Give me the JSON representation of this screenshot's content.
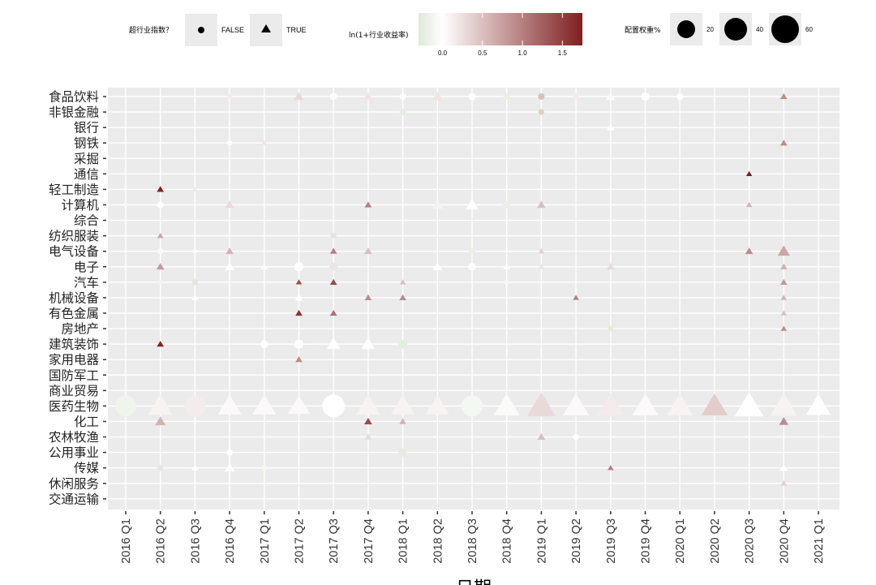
{
  "legend": {
    "shape_title": "超行业指数？",
    "shape_false": "FALSE",
    "shape_true": "TRUE",
    "color_title": "ln(1+行业收益率)",
    "color_ticks": [
      "0.0",
      "0.5",
      "1.0",
      "1.5"
    ],
    "color_low": "#dfe9d8",
    "color_mid": "#ffffff",
    "color_high": "#7f1f1f",
    "size_title": "配置权重%",
    "size_ticks": [
      "20",
      "40",
      "60"
    ]
  },
  "chart_data": {
    "type": "scatter",
    "xlabel": "日期",
    "ylabel": "",
    "x_categories": [
      "2016 Q1",
      "2016 Q2",
      "2016 Q3",
      "2016 Q4",
      "2017 Q1",
      "2017 Q2",
      "2017 Q3",
      "2017 Q4",
      "2018 Q1",
      "2018 Q2",
      "2018 Q3",
      "2018 Q4",
      "2019 Q1",
      "2019 Q2",
      "2019 Q3",
      "2019 Q4",
      "2020 Q1",
      "2020 Q2",
      "2020 Q3",
      "2020 Q4",
      "2021 Q1"
    ],
    "y_categories": [
      "食品饮料",
      "非银金融",
      "银行",
      "钢铁",
      "采掘",
      "通信",
      "轻工制造",
      "计算机",
      "综合",
      "纺织服装",
      "电气设备",
      "电子",
      "汽车",
      "机械设备",
      "有色金属",
      "房地产",
      "建筑装饰",
      "家用电器",
      "国防军工",
      "商业贸易",
      "医药生物",
      "化工",
      "农林牧渔",
      "公用事业",
      "传媒",
      "休闲服务",
      "交通运输"
    ],
    "color_range": [
      -0.3,
      1.75
    ],
    "grid": true,
    "background": "#ebebeb",
    "points": [
      {
        "x": "2016 Q1",
        "y": "医药生物",
        "above_index": false,
        "weight": 52,
        "ln_return": -0.15
      },
      {
        "x": "2016 Q1",
        "y": "计算机",
        "above_index": false,
        "weight": 2,
        "ln_return": 0.05
      },
      {
        "x": "2016 Q2",
        "y": "医药生物",
        "above_index": true,
        "weight": 48,
        "ln_return": 0.1
      },
      {
        "x": "2016 Q2",
        "y": "轻工制造",
        "above_index": true,
        "weight": 4,
        "ln_return": 1.7
      },
      {
        "x": "2016 Q2",
        "y": "建筑装饰",
        "above_index": true,
        "weight": 4,
        "ln_return": 1.7
      },
      {
        "x": "2016 Q2",
        "y": "化工",
        "above_index": true,
        "weight": 9,
        "ln_return": 0.6
      },
      {
        "x": "2016 Q2",
        "y": "电子",
        "above_index": true,
        "weight": 5,
        "ln_return": 0.8
      },
      {
        "x": "2016 Q2",
        "y": "纺织服装",
        "above_index": true,
        "weight": 3,
        "ln_return": 0.7
      },
      {
        "x": "2016 Q2",
        "y": "传媒",
        "above_index": false,
        "weight": 4,
        "ln_return": -0.3
      },
      {
        "x": "2016 Q2",
        "y": "计算机",
        "above_index": false,
        "weight": 5,
        "ln_return": 0.0
      },
      {
        "x": "2016 Q2",
        "y": "电气设备",
        "above_index": false,
        "weight": 4,
        "ln_return": 0.05
      },
      {
        "x": "2016 Q2",
        "y": "汽车",
        "above_index": false,
        "weight": 3,
        "ln_return": 0.1
      },
      {
        "x": "2016 Q3",
        "y": "医药生物",
        "above_index": false,
        "weight": 52,
        "ln_return": 0.15
      },
      {
        "x": "2016 Q3",
        "y": "汽车",
        "above_index": false,
        "weight": 4,
        "ln_return": -0.3
      },
      {
        "x": "2016 Q3",
        "y": "机械设备",
        "above_index": true,
        "weight": 4,
        "ln_return": 0.0
      },
      {
        "x": "2016 Q3",
        "y": "传媒",
        "above_index": true,
        "weight": 4,
        "ln_return": 0.0
      },
      {
        "x": "2016 Q3",
        "y": "电气设备",
        "above_index": false,
        "weight": 3,
        "ln_return": 0.05
      },
      {
        "x": "2016 Q3",
        "y": "轻工制造",
        "above_index": true,
        "weight": 2,
        "ln_return": 0.2
      },
      {
        "x": "2016 Q4",
        "y": "医药生物",
        "above_index": true,
        "weight": 45,
        "ln_return": 0.05
      },
      {
        "x": "2016 Q4",
        "y": "电气设备",
        "above_index": true,
        "weight": 5,
        "ln_return": 0.6
      },
      {
        "x": "2016 Q4",
        "y": "计算机",
        "above_index": true,
        "weight": 6,
        "ln_return": 0.3
      },
      {
        "x": "2016 Q4",
        "y": "电子",
        "above_index": true,
        "weight": 7,
        "ln_return": 0.0
      },
      {
        "x": "2016 Q4",
        "y": "传媒",
        "above_index": true,
        "weight": 9,
        "ln_return": 0.0
      },
      {
        "x": "2016 Q4",
        "y": "钢铁",
        "above_index": false,
        "weight": 3,
        "ln_return": 0.0
      },
      {
        "x": "2016 Q4",
        "y": "食品饮料",
        "above_index": false,
        "weight": 3,
        "ln_return": 0.15
      },
      {
        "x": "2016 Q4",
        "y": "公用事业",
        "above_index": false,
        "weight": 5,
        "ln_return": 0.0
      },
      {
        "x": "2017 Q1",
        "y": "医药生物",
        "above_index": true,
        "weight": 45,
        "ln_return": 0.05
      },
      {
        "x": "2017 Q1",
        "y": "建筑装饰",
        "above_index": false,
        "weight": 7,
        "ln_return": 0.0
      },
      {
        "x": "2017 Q1",
        "y": "传媒",
        "above_index": false,
        "weight": 4,
        "ln_return": -0.1
      },
      {
        "x": "2017 Q1",
        "y": "电子",
        "above_index": true,
        "weight": 5,
        "ln_return": 0.05
      },
      {
        "x": "2017 Q1",
        "y": "钢铁",
        "above_index": false,
        "weight": 2,
        "ln_return": 0.2
      },
      {
        "x": "2017 Q2",
        "y": "医药生物",
        "above_index": true,
        "weight": 40,
        "ln_return": 0.05
      },
      {
        "x": "2017 Q2",
        "y": "食品饮料",
        "above_index": true,
        "weight": 7,
        "ln_return": 0.3
      },
      {
        "x": "2017 Q2",
        "y": "汽车",
        "above_index": true,
        "weight": 3,
        "ln_return": 1.4
      },
      {
        "x": "2017 Q2",
        "y": "有色金属",
        "above_index": true,
        "weight": 4,
        "ln_return": 1.6
      },
      {
        "x": "2017 Q2",
        "y": "家用电器",
        "above_index": true,
        "weight": 4,
        "ln_return": 0.9
      },
      {
        "x": "2017 Q2",
        "y": "电子",
        "above_index": false,
        "weight": 10,
        "ln_return": 0.0
      },
      {
        "x": "2017 Q2",
        "y": "建筑装饰",
        "above_index": false,
        "weight": 10,
        "ln_return": 0.0
      },
      {
        "x": "2017 Q2",
        "y": "机械设备",
        "above_index": true,
        "weight": 5,
        "ln_return": 0.0
      },
      {
        "x": "2017 Q3",
        "y": "医药生物",
        "above_index": false,
        "weight": 60,
        "ln_return": 0.0
      },
      {
        "x": "2017 Q3",
        "y": "汽车",
        "above_index": true,
        "weight": 4,
        "ln_return": 1.4
      },
      {
        "x": "2017 Q3",
        "y": "有色金属",
        "above_index": true,
        "weight": 4,
        "ln_return": 1.1
      },
      {
        "x": "2017 Q3",
        "y": "电气设备",
        "above_index": true,
        "weight": 4,
        "ln_return": 1.0
      },
      {
        "x": "2017 Q3",
        "y": "纺织服装",
        "above_index": false,
        "weight": 4,
        "ln_return": -0.3
      },
      {
        "x": "2017 Q3",
        "y": "建筑装饰",
        "above_index": true,
        "weight": 15,
        "ln_return": 0.0
      },
      {
        "x": "2017 Q3",
        "y": "电子",
        "above_index": false,
        "weight": 8,
        "ln_return": 0.2
      },
      {
        "x": "2017 Q3",
        "y": "食品饮料",
        "above_index": false,
        "weight": 6,
        "ln_return": 0.0
      },
      {
        "x": "2017 Q4",
        "y": "医药生物",
        "above_index": true,
        "weight": 48,
        "ln_return": 0.1
      },
      {
        "x": "2017 Q4",
        "y": "建筑装饰",
        "above_index": true,
        "weight": 15,
        "ln_return": 0.0
      },
      {
        "x": "2017 Q4",
        "y": "化工",
        "above_index": true,
        "weight": 5,
        "ln_return": 1.4
      },
      {
        "x": "2017 Q4",
        "y": "计算机",
        "above_index": true,
        "weight": 4,
        "ln_return": 1.0
      },
      {
        "x": "2017 Q4",
        "y": "机械设备",
        "above_index": true,
        "weight": 4,
        "ln_return": 0.9
      },
      {
        "x": "2017 Q4",
        "y": "电气设备",
        "above_index": true,
        "weight": 5,
        "ln_return": 0.5
      },
      {
        "x": "2017 Q4",
        "y": "食品饮料",
        "above_index": true,
        "weight": 7,
        "ln_return": 0.2
      },
      {
        "x": "2017 Q4",
        "y": "农林牧渔",
        "above_index": true,
        "weight": 4,
        "ln_return": 0.3
      },
      {
        "x": "2018 Q1",
        "y": "医药生物",
        "above_index": true,
        "weight": 45,
        "ln_return": 0.1
      },
      {
        "x": "2018 Q1",
        "y": "建筑装饰",
        "above_index": false,
        "weight": 9,
        "ln_return": -0.25
      },
      {
        "x": "2018 Q1",
        "y": "公用事业",
        "above_index": false,
        "weight": 8,
        "ln_return": -0.25
      },
      {
        "x": "2018 Q1",
        "y": "非银金融",
        "above_index": false,
        "weight": 5,
        "ln_return": -0.25
      },
      {
        "x": "2018 Q1",
        "y": "机械设备",
        "above_index": true,
        "weight": 4,
        "ln_return": 0.9
      },
      {
        "x": "2018 Q1",
        "y": "化工",
        "above_index": true,
        "weight": 4,
        "ln_return": 0.6
      },
      {
        "x": "2018 Q1",
        "y": "汽车",
        "above_index": true,
        "weight": 3,
        "ln_return": 0.5
      },
      {
        "x": "2018 Q1",
        "y": "食品饮料",
        "above_index": false,
        "weight": 5,
        "ln_return": 0.0
      },
      {
        "x": "2018 Q2",
        "y": "医药生物",
        "above_index": true,
        "weight": 45,
        "ln_return": 0.1
      },
      {
        "x": "2018 Q2",
        "y": "食品饮料",
        "above_index": true,
        "weight": 9,
        "ln_return": 0.2
      },
      {
        "x": "2018 Q2",
        "y": "计算机",
        "above_index": true,
        "weight": 9,
        "ln_return": 0.1
      },
      {
        "x": "2018 Q2",
        "y": "电子",
        "above_index": true,
        "weight": 7,
        "ln_return": 0.0
      },
      {
        "x": "2018 Q3",
        "y": "医药生物",
        "above_index": false,
        "weight": 52,
        "ln_return": -0.1
      },
      {
        "x": "2018 Q3",
        "y": "计算机",
        "above_index": true,
        "weight": 13,
        "ln_return": 0.0
      },
      {
        "x": "2018 Q3",
        "y": "电子",
        "above_index": false,
        "weight": 7,
        "ln_return": 0.0
      },
      {
        "x": "2018 Q3",
        "y": "电气设备",
        "above_index": false,
        "weight": 4,
        "ln_return": -0.2
      },
      {
        "x": "2018 Q3",
        "y": "食品饮料",
        "above_index": false,
        "weight": 6,
        "ln_return": 0.0
      },
      {
        "x": "2018 Q4",
        "y": "医药生物",
        "above_index": true,
        "weight": 55,
        "ln_return": -0.05
      },
      {
        "x": "2018 Q4",
        "y": "计算机",
        "above_index": false,
        "weight": 6,
        "ln_return": -0.2
      },
      {
        "x": "2018 Q4",
        "y": "食品饮料",
        "above_index": false,
        "weight": 5,
        "ln_return": -0.2
      },
      {
        "x": "2018 Q4",
        "y": "电子",
        "above_index": true,
        "weight": 4,
        "ln_return": 0.0
      },
      {
        "x": "2018 Q4",
        "y": "汽车",
        "above_index": false,
        "weight": 3,
        "ln_return": -0.1
      },
      {
        "x": "2019 Q1",
        "y": "医药生物",
        "above_index": true,
        "weight": 65,
        "ln_return": 0.3
      },
      {
        "x": "2019 Q1",
        "y": "食品饮料",
        "above_index": false,
        "weight": 5,
        "ln_return": 0.5
      },
      {
        "x": "2019 Q1",
        "y": "非银金融",
        "above_index": false,
        "weight": 4,
        "ln_return": 0.4
      },
      {
        "x": "2019 Q1",
        "y": "计算机",
        "above_index": true,
        "weight": 6,
        "ln_return": 0.5
      },
      {
        "x": "2019 Q1",
        "y": "农林牧渔",
        "above_index": true,
        "weight": 5,
        "ln_return": 0.5
      },
      {
        "x": "2019 Q1",
        "y": "电子",
        "above_index": true,
        "weight": 4,
        "ln_return": 0.2
      },
      {
        "x": "2019 Q1",
        "y": "电气设备",
        "above_index": true,
        "weight": 3,
        "ln_return": 0.4
      },
      {
        "x": "2019 Q2",
        "y": "医药生物",
        "above_index": true,
        "weight": 55,
        "ln_return": 0.05
      },
      {
        "x": "2019 Q2",
        "y": "机械设备",
        "above_index": true,
        "weight": 3,
        "ln_return": 1.0
      },
      {
        "x": "2019 Q2",
        "y": "食品饮料",
        "above_index": false,
        "weight": 5,
        "ln_return": 0.15
      },
      {
        "x": "2019 Q2",
        "y": "农林牧渔",
        "above_index": false,
        "weight": 4,
        "ln_return": 0.0
      },
      {
        "x": "2019 Q3",
        "y": "医药生物",
        "above_index": true,
        "weight": 58,
        "ln_return": 0.15
      },
      {
        "x": "2019 Q3",
        "y": "传媒",
        "above_index": true,
        "weight": 3,
        "ln_return": 1.0
      },
      {
        "x": "2019 Q3",
        "y": "房地产",
        "above_index": false,
        "weight": 4,
        "ln_return": -0.25
      },
      {
        "x": "2019 Q3",
        "y": "电子",
        "above_index": true,
        "weight": 5,
        "ln_return": 0.3
      },
      {
        "x": "2019 Q3",
        "y": "食品饮料",
        "above_index": true,
        "weight": 8,
        "ln_return": 0.05
      },
      {
        "x": "2019 Q3",
        "y": "银行",
        "above_index": true,
        "weight": 5,
        "ln_return": 0.0
      },
      {
        "x": "2019 Q4",
        "y": "医药生物",
        "above_index": true,
        "weight": 55,
        "ln_return": 0.05
      },
      {
        "x": "2019 Q4",
        "y": "食品饮料",
        "above_index": false,
        "weight": 8,
        "ln_return": 0.0
      },
      {
        "x": "2020 Q1",
        "y": "医药生物",
        "above_index": true,
        "weight": 55,
        "ln_return": 0.1
      },
      {
        "x": "2020 Q1",
        "y": "食品饮料",
        "above_index": false,
        "weight": 5,
        "ln_return": 0.0
      },
      {
        "x": "2020 Q2",
        "y": "医药生物",
        "above_index": true,
        "weight": 55,
        "ln_return": 0.4
      },
      {
        "x": "2020 Q3",
        "y": "医药生物",
        "above_index": true,
        "weight": 68,
        "ln_return": 0.0
      },
      {
        "x": "2020 Q3",
        "y": "通信",
        "above_index": true,
        "weight": 3,
        "ln_return": 1.75
      },
      {
        "x": "2020 Q3",
        "y": "电气设备",
        "above_index": true,
        "weight": 5,
        "ln_return": 0.9
      },
      {
        "x": "2020 Q3",
        "y": "计算机",
        "above_index": true,
        "weight": 3,
        "ln_return": 0.6
      },
      {
        "x": "2020 Q4",
        "y": "医药生物",
        "above_index": true,
        "weight": 60,
        "ln_return": 0.1
      },
      {
        "x": "2020 Q4",
        "y": "电气设备",
        "above_index": true,
        "weight": 12,
        "ln_return": 0.7
      },
      {
        "x": "2020 Q4",
        "y": "化工",
        "above_index": true,
        "weight": 7,
        "ln_return": 0.9
      },
      {
        "x": "2020 Q4",
        "y": "食品饮料",
        "above_index": true,
        "weight": 4,
        "ln_return": 0.9
      },
      {
        "x": "2020 Q4",
        "y": "钢铁",
        "above_index": true,
        "weight": 4,
        "ln_return": 0.9
      },
      {
        "x": "2020 Q4",
        "y": "电子",
        "above_index": true,
        "weight": 4,
        "ln_return": 0.6
      },
      {
        "x": "2020 Q4",
        "y": "汽车",
        "above_index": true,
        "weight": 4,
        "ln_return": 0.8
      },
      {
        "x": "2020 Q4",
        "y": "机械设备",
        "above_index": true,
        "weight": 3,
        "ln_return": 0.6
      },
      {
        "x": "2020 Q4",
        "y": "有色金属",
        "above_index": true,
        "weight": 3,
        "ln_return": 0.5
      },
      {
        "x": "2020 Q4",
        "y": "房地产",
        "above_index": true,
        "weight": 3,
        "ln_return": 0.9
      },
      {
        "x": "2020 Q4",
        "y": "休闲服务",
        "above_index": true,
        "weight": 3,
        "ln_return": 0.4
      },
      {
        "x": "2020 Q4",
        "y": "传媒",
        "above_index": true,
        "weight": 5,
        "ln_return": 0.0
      },
      {
        "x": "2021 Q1",
        "y": "医药生物",
        "above_index": true,
        "weight": 50,
        "ln_return": 0.0
      }
    ]
  }
}
